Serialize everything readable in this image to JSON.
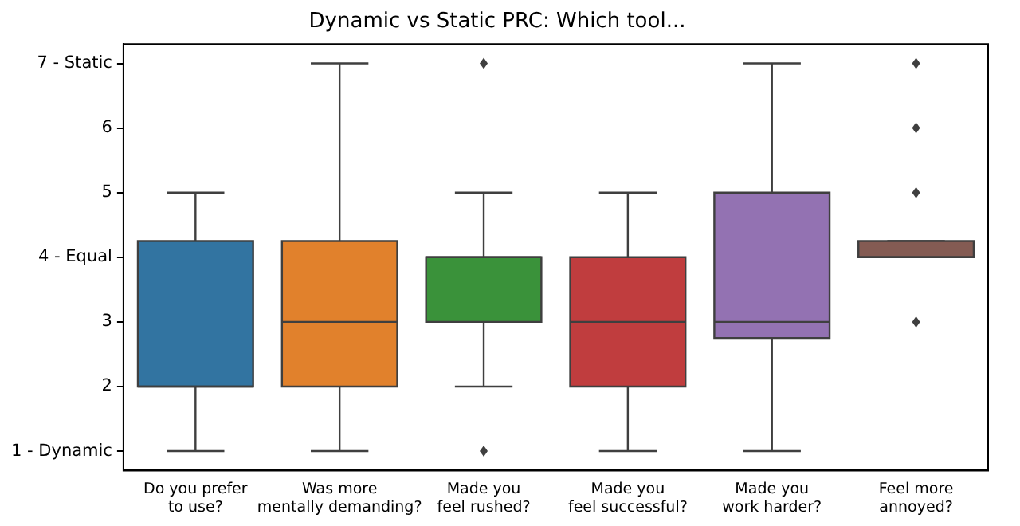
{
  "chart_data": {
    "type": "box",
    "title": "Dynamic vs Static PRC: Which tool...",
    "categories": [
      "Do you prefer\nto use?",
      "Was more\nmentally demanding?",
      "Made you\nfeel rushed?",
      "Made you\nfeel successful?",
      "Made you\nwork harder?",
      "Feel more\nannoyed?"
    ],
    "boxes": [
      {
        "low": 1,
        "q1": 2,
        "median": 2,
        "q3": 4.25,
        "high": 5
      },
      {
        "low": 1,
        "q1": 2,
        "median": 3,
        "q3": 4.25,
        "high": 7
      },
      {
        "low": 2,
        "q1": 3,
        "median": 4,
        "q3": 4,
        "high": 5,
        "outliers": [
          1,
          7
        ]
      },
      {
        "low": 1,
        "q1": 2,
        "median": 3,
        "q3": 4,
        "high": 5
      },
      {
        "low": 1,
        "q1": 2.75,
        "median": 3,
        "q3": 5,
        "high": 7
      },
      {
        "low": 4,
        "q1": 4,
        "median": 4,
        "q3": 4.25,
        "high": 4.25,
        "outliers": [
          3,
          5,
          6,
          7
        ]
      }
    ],
    "colors": [
      "#3274a1",
      "#e1812c",
      "#3a923a",
      "#c03d3e",
      "#9372b2",
      "#845b53"
    ],
    "ylim": [
      0.7,
      7.3
    ],
    "yticks": [
      {
        "value": 1,
        "label": "1 - Dynamic"
      },
      2,
      3,
      {
        "value": 4,
        "label": "4 - Equal"
      },
      5,
      6,
      {
        "value": 7,
        "label": "7 - Static"
      }
    ],
    "grid": false,
    "legend": false
  }
}
